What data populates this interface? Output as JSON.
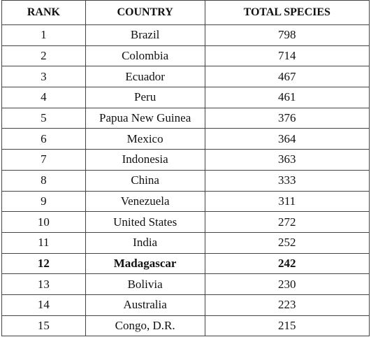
{
  "table": {
    "header": [
      "RANK",
      "COUNTRY",
      "TOTAL SPECIES"
    ],
    "rows": [
      [
        1,
        "Brazil",
        798
      ],
      [
        2,
        "Colombia",
        714
      ],
      [
        3,
        "Ecuador",
        467
      ],
      [
        4,
        "Peru",
        461
      ],
      [
        5,
        "Papua New Guinea",
        376
      ],
      [
        6,
        "Mexico",
        364
      ],
      [
        7,
        "Indonesia",
        363
      ],
      [
        8,
        "China",
        333
      ],
      [
        9,
        "Venezuela",
        311
      ],
      [
        10,
        "United States",
        272
      ],
      [
        11,
        "India",
        252
      ],
      [
        12,
        "Madagascar",
        242
      ],
      [
        13,
        "Bolivia",
        230
      ],
      [
        14,
        "Australia",
        223
      ],
      [
        15,
        "Congo, D.R.",
        215
      ]
    ]
  }
}
